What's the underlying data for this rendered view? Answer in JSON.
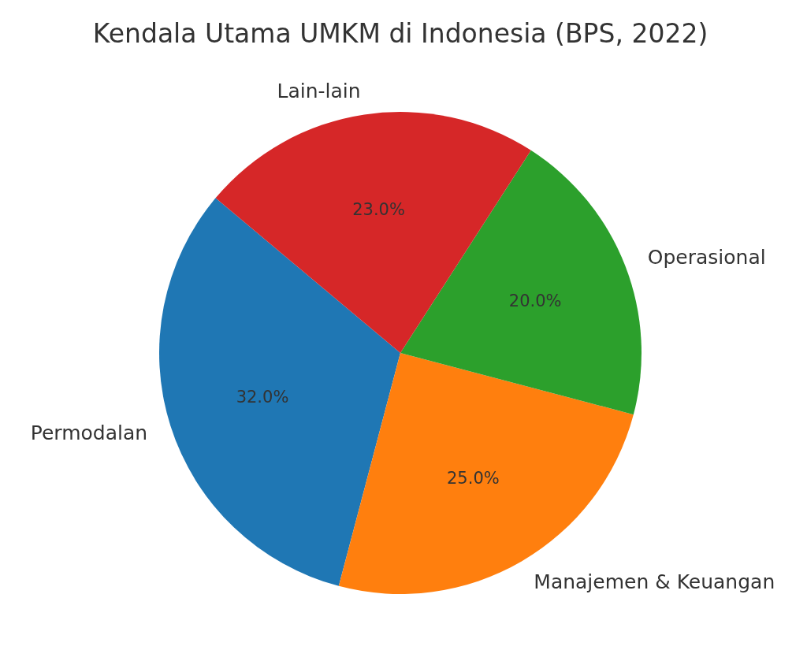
{
  "chart_data": {
    "type": "pie",
    "title": "Kendala Utama UMKM di Indonesia (BPS, 2022)",
    "categories": [
      "Permodalan",
      "Manajemen & Keuangan",
      "Operasional",
      "Lain-lain"
    ],
    "values": [
      32,
      25,
      20,
      23
    ],
    "colors": [
      "#1f77b4",
      "#ff7f0e",
      "#2ca02c",
      "#d62728"
    ],
    "value_labels": [
      "32.0%",
      "25.0%",
      "20.0%",
      "23.0%"
    ]
  }
}
